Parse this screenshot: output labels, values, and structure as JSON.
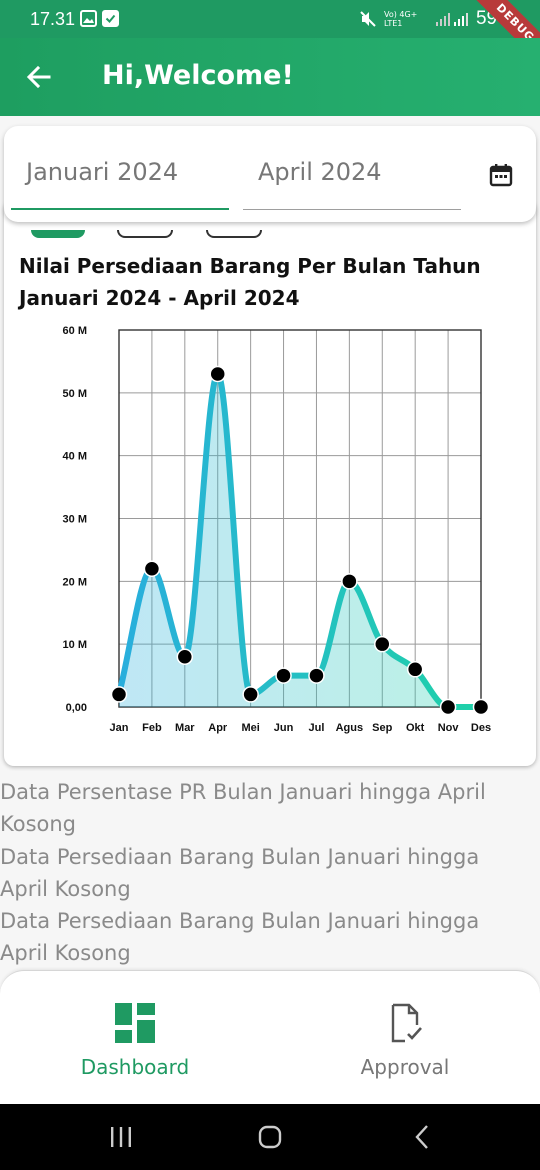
{
  "status_bar": {
    "time": "17.31",
    "battery": "59%",
    "network_label": "Vo) 4G+ LTE1",
    "debug_label": "DEBUG"
  },
  "app_bar": {
    "title": "Hi,Welcome!",
    "back_icon": "arrow-back-icon"
  },
  "date_range": {
    "start": "Januari 2024",
    "end": "April 2024",
    "calendar_icon": "calendar-icon"
  },
  "chart_title": "Nilai Persediaan Barang Per Bulan Tahun Januari 2024 - April 2024",
  "chart_data": {
    "type": "area",
    "title": "Nilai Persediaan Barang Per Bulan Tahun Januari 2024 - April 2024",
    "categories": [
      "Jan",
      "Feb",
      "Mar",
      "Apr",
      "Mei",
      "Jun",
      "Jul",
      "Agus",
      "Sep",
      "Okt",
      "Nov",
      "Des"
    ],
    "values": [
      2,
      22,
      8,
      53,
      2,
      5,
      5,
      20,
      10,
      6,
      0,
      0
    ],
    "unit": "M",
    "ylim": [
      0,
      60
    ],
    "yticks": [
      0,
      10,
      20,
      30,
      40,
      50,
      60
    ],
    "ytick_labels": [
      "0,00",
      "10 M",
      "20 M",
      "30 M",
      "40 M",
      "50 M",
      "60 M"
    ],
    "grid": true,
    "colors": {
      "start": "#29aedd",
      "end": "#1fd1a8",
      "marker": "#000000",
      "grid": "#9a9a9a"
    }
  },
  "empty_messages": [
    "Data Persentase PR Bulan Januari hingga April Kosong",
    "Data Persediaan Barang Bulan Januari hingga April Kosong",
    "Data Persediaan Barang Bulan Januari hingga April Kosong"
  ],
  "bottom_nav": {
    "items": [
      {
        "label": "Dashboard",
        "icon": "dashboard-icon",
        "active": true
      },
      {
        "label": "Approval",
        "icon": "approval-document-icon",
        "active": false
      }
    ]
  },
  "colors": {
    "primary": "#1f9a62",
    "accent_gradient_end": "#26b070"
  }
}
